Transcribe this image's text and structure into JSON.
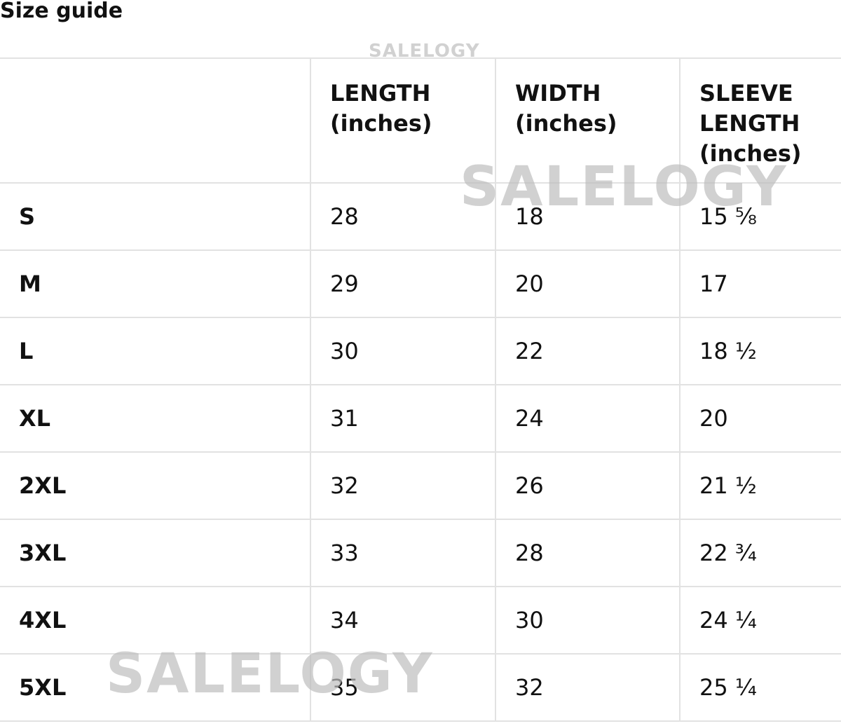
{
  "title": "Size guide",
  "watermark": "SALELOGY",
  "columns": [
    "",
    "LENGTH\n(inches)",
    "WIDTH\n(inches)",
    "SLEEVE\nLENGTH\n(inches)"
  ],
  "rows": [
    {
      "size": "S",
      "length": "28",
      "width": "18",
      "sleeve": "15 ⅝"
    },
    {
      "size": "M",
      "length": "29",
      "width": "20",
      "sleeve": "17"
    },
    {
      "size": "L",
      "length": "30",
      "width": "22",
      "sleeve": "18 ½"
    },
    {
      "size": "XL",
      "length": "31",
      "width": "24",
      "sleeve": "20"
    },
    {
      "size": "2XL",
      "length": "32",
      "width": "26",
      "sleeve": "21 ½"
    },
    {
      "size": "3XL",
      "length": "33",
      "width": "28",
      "sleeve": "22 ¾"
    },
    {
      "size": "4XL",
      "length": "34",
      "width": "30",
      "sleeve": "24 ¼"
    },
    {
      "size": "5XL",
      "length": "35",
      "width": "32",
      "sleeve": "25 ¼"
    }
  ]
}
